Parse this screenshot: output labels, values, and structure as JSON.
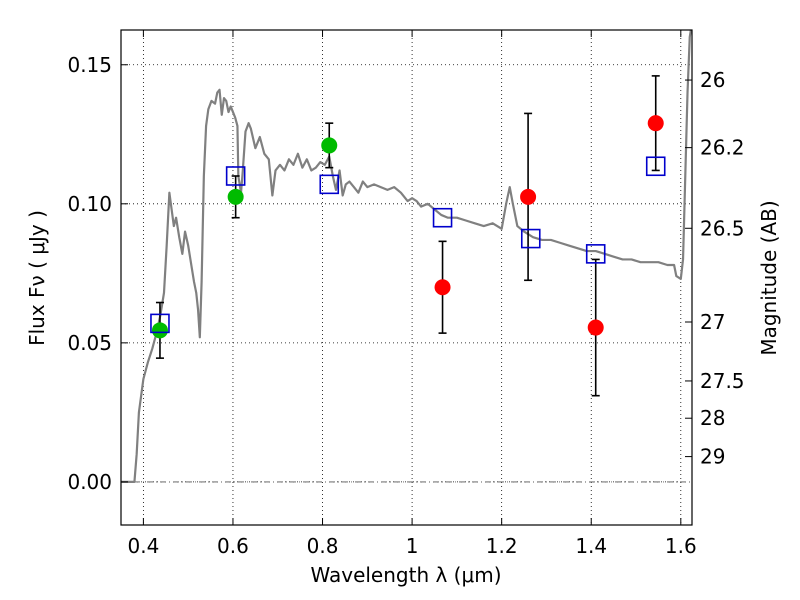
{
  "chart_data": {
    "type": "scatter",
    "xlabel": "Wavelength  λ (μm)",
    "ylabel": "Flux  Fν  ( μJy )",
    "y2label": "Magnitude (AB)",
    "xlim": [
      0.35,
      1.625
    ],
    "ylim": [
      -0.0155,
      0.1625
    ],
    "grid": true,
    "x_ticks": [
      0.4,
      0.6,
      0.8,
      1.0,
      1.2,
      1.4,
      1.6
    ],
    "x_tick_labels": [
      "0.4",
      "0.6",
      "0.8",
      "1",
      "1.2",
      "1.4",
      "1.6"
    ],
    "y_ticks": [
      0.0,
      0.05,
      0.1,
      0.15
    ],
    "y_tick_labels": [
      "0.00",
      "0.05",
      "0.10",
      "0.15"
    ],
    "y2_ticks": [
      {
        "label": "26",
        "flux": 0.1445
      },
      {
        "label": "26.2",
        "flux": 0.1202
      },
      {
        "label": "26.5",
        "flux": 0.0912
      },
      {
        "label": "27",
        "flux": 0.0575
      },
      {
        "label": "27.5",
        "flux": 0.0363
      },
      {
        "label": "28",
        "flux": 0.0229
      },
      {
        "label": "29",
        "flux": 0.0091
      }
    ],
    "colors": {
      "model": "#808080",
      "green_points": "#00bb00",
      "red_points": "#ff0000",
      "model_photometry": "#0000cc",
      "errorbar": "#000000",
      "zero_line": "#555555"
    },
    "series": [
      {
        "kind": "model_spectrum",
        "points": [
          [
            0.35,
            0.0
          ],
          [
            0.372,
            0.0
          ],
          [
            0.38,
            0.0
          ],
          [
            0.385,
            0.01
          ],
          [
            0.39,
            0.025
          ],
          [
            0.4,
            0.037
          ],
          [
            0.41,
            0.043
          ],
          [
            0.42,
            0.048
          ],
          [
            0.43,
            0.054
          ],
          [
            0.438,
            0.06
          ],
          [
            0.446,
            0.068
          ],
          [
            0.452,
            0.085
          ],
          [
            0.458,
            0.104
          ],
          [
            0.463,
            0.098
          ],
          [
            0.468,
            0.092
          ],
          [
            0.473,
            0.095
          ],
          [
            0.48,
            0.088
          ],
          [
            0.487,
            0.082
          ],
          [
            0.493,
            0.09
          ],
          [
            0.5,
            0.085
          ],
          [
            0.507,
            0.078
          ],
          [
            0.513,
            0.072
          ],
          [
            0.518,
            0.068
          ],
          [
            0.522,
            0.062
          ],
          [
            0.526,
            0.052
          ],
          [
            0.53,
            0.072
          ],
          [
            0.535,
            0.11
          ],
          [
            0.54,
            0.128
          ],
          [
            0.545,
            0.134
          ],
          [
            0.552,
            0.137
          ],
          [
            0.56,
            0.136
          ],
          [
            0.565,
            0.14
          ],
          [
            0.57,
            0.141
          ],
          [
            0.575,
            0.132
          ],
          [
            0.58,
            0.138
          ],
          [
            0.585,
            0.137
          ],
          [
            0.59,
            0.133
          ],
          [
            0.595,
            0.135
          ],
          [
            0.6,
            0.133
          ],
          [
            0.605,
            0.131
          ],
          [
            0.61,
            0.128
          ],
          [
            0.612,
            0.11
          ],
          [
            0.618,
            0.104
          ],
          [
            0.622,
            0.112
          ],
          [
            0.628,
            0.126
          ],
          [
            0.635,
            0.129
          ],
          [
            0.64,
            0.127
          ],
          [
            0.65,
            0.12
          ],
          [
            0.66,
            0.124
          ],
          [
            0.67,
            0.118
          ],
          [
            0.68,
            0.116
          ],
          [
            0.688,
            0.103
          ],
          [
            0.695,
            0.112
          ],
          [
            0.705,
            0.114
          ],
          [
            0.715,
            0.112
          ],
          [
            0.725,
            0.116
          ],
          [
            0.735,
            0.114
          ],
          [
            0.745,
            0.118
          ],
          [
            0.755,
            0.113
          ],
          [
            0.765,
            0.116
          ],
          [
            0.775,
            0.112
          ],
          [
            0.785,
            0.113
          ],
          [
            0.795,
            0.115
          ],
          [
            0.805,
            0.114
          ],
          [
            0.815,
            0.117
          ],
          [
            0.823,
            0.11
          ],
          [
            0.83,
            0.105
          ],
          [
            0.838,
            0.112
          ],
          [
            0.845,
            0.103
          ],
          [
            0.852,
            0.107
          ],
          [
            0.86,
            0.108
          ],
          [
            0.87,
            0.106
          ],
          [
            0.88,
            0.104
          ],
          [
            0.89,
            0.108
          ],
          [
            0.9,
            0.106
          ],
          [
            0.915,
            0.107
          ],
          [
            0.93,
            0.106
          ],
          [
            0.945,
            0.105
          ],
          [
            0.96,
            0.106
          ],
          [
            0.975,
            0.104
          ],
          [
            0.99,
            0.101
          ],
          [
            1.0,
            0.102
          ],
          [
            1.01,
            0.101
          ],
          [
            1.02,
            0.099
          ],
          [
            1.035,
            0.1
          ],
          [
            1.05,
            0.098
          ],
          [
            1.065,
            0.096
          ],
          [
            1.08,
            0.095
          ],
          [
            1.1,
            0.095
          ],
          [
            1.12,
            0.094
          ],
          [
            1.14,
            0.093
          ],
          [
            1.16,
            0.092
          ],
          [
            1.18,
            0.093
          ],
          [
            1.2,
            0.091
          ],
          [
            1.21,
            0.1
          ],
          [
            1.218,
            0.106
          ],
          [
            1.225,
            0.1
          ],
          [
            1.235,
            0.092
          ],
          [
            1.25,
            0.09
          ],
          [
            1.27,
            0.088
          ],
          [
            1.29,
            0.087
          ],
          [
            1.31,
            0.087
          ],
          [
            1.33,
            0.086
          ],
          [
            1.35,
            0.085
          ],
          [
            1.37,
            0.084
          ],
          [
            1.39,
            0.083
          ],
          [
            1.41,
            0.083
          ],
          [
            1.43,
            0.082
          ],
          [
            1.45,
            0.081
          ],
          [
            1.47,
            0.08
          ],
          [
            1.49,
            0.08
          ],
          [
            1.51,
            0.079
          ],
          [
            1.53,
            0.079
          ],
          [
            1.55,
            0.079
          ],
          [
            1.57,
            0.078
          ],
          [
            1.585,
            0.078
          ],
          [
            1.59,
            0.074
          ],
          [
            1.6,
            0.073
          ],
          [
            1.605,
            0.08
          ],
          [
            1.61,
            0.11
          ],
          [
            1.615,
            0.14
          ],
          [
            1.62,
            0.16
          ],
          [
            1.625,
            0.165
          ]
        ]
      },
      {
        "kind": "observed_points_green",
        "points": [
          {
            "x": 0.437,
            "y": 0.0545,
            "yerr": 0.01
          },
          {
            "x": 0.606,
            "y": 0.1025,
            "yerr": 0.0075
          },
          {
            "x": 0.815,
            "y": 0.121,
            "yerr": 0.008
          }
        ]
      },
      {
        "kind": "observed_points_red",
        "points": [
          {
            "x": 1.068,
            "y": 0.07,
            "yerr": 0.0165
          },
          {
            "x": 1.259,
            "y": 0.1025,
            "yerr": 0.03
          },
          {
            "x": 1.41,
            "y": 0.0555,
            "yerr": 0.0245
          },
          {
            "x": 1.544,
            "y": 0.129,
            "yerr": 0.017
          }
        ]
      },
      {
        "kind": "model_photometry",
        "points": [
          {
            "x": 0.437,
            "y": 0.057
          },
          {
            "x": 0.606,
            "y": 0.11
          },
          {
            "x": 0.815,
            "y": 0.107
          },
          {
            "x": 1.068,
            "y": 0.095
          },
          {
            "x": 1.265,
            "y": 0.0875
          },
          {
            "x": 1.41,
            "y": 0.082
          },
          {
            "x": 1.544,
            "y": 0.1135
          }
        ]
      }
    ]
  }
}
